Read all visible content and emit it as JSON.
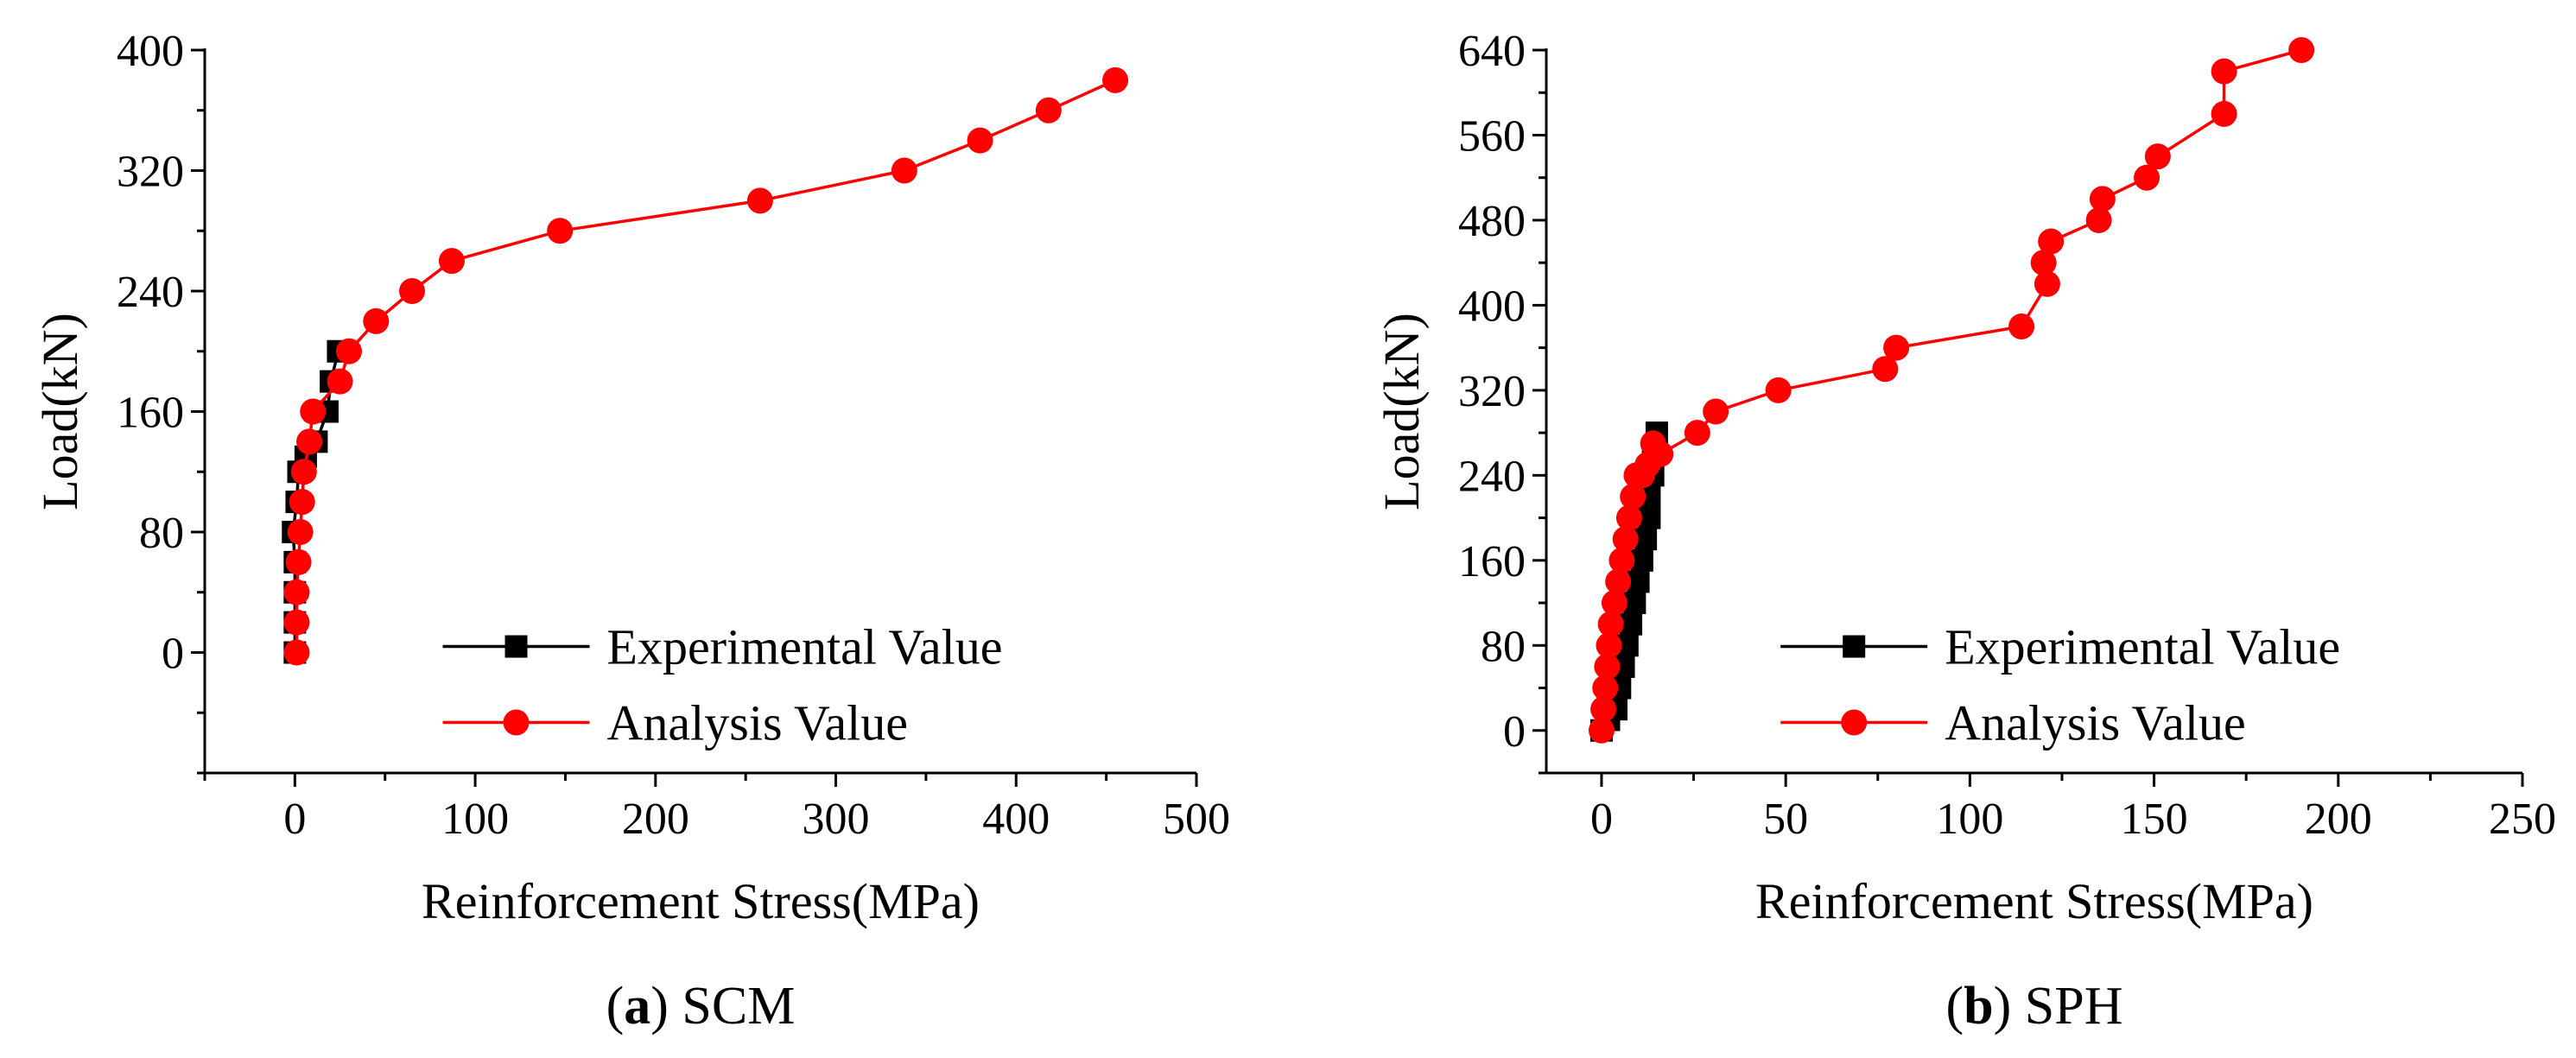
{
  "chart_data": [
    {
      "id": "a",
      "type": "line",
      "caption_letter": "a",
      "caption_text": "SCM",
      "xlabel": "Reinforcement Stress(MPa)",
      "ylabel": "Load(kN)",
      "xlim": [
        -50,
        500
      ],
      "ylim": [
        -80,
        400
      ],
      "xticks": [
        0,
        100,
        200,
        300,
        400,
        500
      ],
      "yticks": [
        0,
        80,
        160,
        240,
        320,
        400
      ],
      "x_minor_step": 50,
      "y_minor_step": 40,
      "legend_position": "bottom-right",
      "series": [
        {
          "name": "Experimental Value",
          "color": "#000000",
          "marker": "square",
          "x": [
            0,
            0,
            0,
            0,
            -1,
            1,
            2,
            6,
            12,
            18,
            20,
            24
          ],
          "y": [
            0,
            20,
            40,
            60,
            80,
            100,
            120,
            130,
            140,
            160,
            180,
            200
          ]
        },
        {
          "name": "Analysis Value",
          "color": "#ff0000",
          "marker": "circle",
          "x": [
            1,
            1,
            1,
            2,
            3,
            4,
            5,
            8,
            10,
            25,
            30,
            45,
            65,
            87,
            147,
            258,
            338,
            380,
            418,
            455
          ],
          "y": [
            0,
            20,
            40,
            60,
            80,
            100,
            120,
            140,
            160,
            180,
            200,
            220,
            240,
            260,
            280,
            300,
            320,
            340,
            360,
            380
          ]
        }
      ]
    },
    {
      "id": "b",
      "type": "line",
      "caption_letter": "b",
      "caption_text": "SPH",
      "xlabel": "Reinforcement Stress(MPa)",
      "ylabel": "Load(kN)",
      "xlim": [
        -15,
        250
      ],
      "ylim": [
        -40,
        640
      ],
      "xticks": [
        0,
        50,
        100,
        150,
        200,
        250
      ],
      "yticks": [
        0,
        80,
        160,
        240,
        320,
        400,
        480,
        560,
        640
      ],
      "x_minor_step": 25,
      "y_minor_step": 40,
      "legend_position": "bottom-right",
      "series": [
        {
          "name": "Experimental Value",
          "color": "#000000",
          "marker": "square",
          "x": [
            0,
            2,
            4,
            5,
            6,
            7,
            8,
            9,
            10,
            11,
            12,
            13,
            13,
            14,
            14,
            15
          ],
          "y": [
            0,
            10,
            20,
            40,
            60,
            80,
            100,
            120,
            140,
            160,
            180,
            200,
            220,
            240,
            260,
            280
          ]
        },
        {
          "name": "Analysis Value",
          "color": "#ff0000",
          "marker": "circle",
          "x": [
            0,
            0.5,
            1,
            1.5,
            2,
            2.5,
            3.5,
            4.5,
            5.5,
            6.5,
            7.5,
            8.5,
            9.5,
            11,
            12.5,
            14,
            16,
            26,
            31,
            48,
            77,
            80,
            114,
            121,
            120,
            122,
            135,
            136,
            148,
            151,
            169,
            169,
            190
          ],
          "y": [
            0,
            20,
            40,
            60,
            80,
            100,
            120,
            140,
            160,
            180,
            200,
            220,
            240,
            240,
            250,
            270,
            260,
            280,
            300,
            320,
            340,
            360,
            380,
            420,
            440,
            460,
            480,
            500,
            520,
            540,
            580,
            620,
            640
          ]
        }
      ]
    }
  ]
}
